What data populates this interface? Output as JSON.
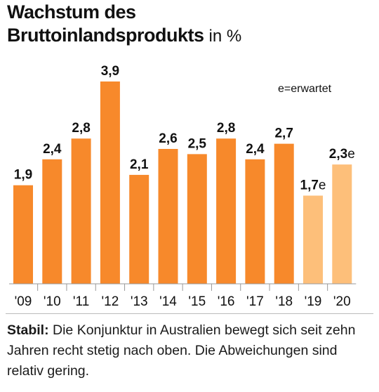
{
  "title": {
    "line1": "Wachstum des",
    "line2": "Bruttoinlandsprodukts",
    "unit": "in %"
  },
  "legend_note": "e=erwartet",
  "caption": {
    "lead": "Stabil:",
    "text": "Die Konjunktur in Australien bewegt sich seit zehn Jahren recht stetig nach oben. Die Abweichungen sind relativ gering."
  },
  "colors": {
    "actual": "#f7892b",
    "expected": "#fdbf7a",
    "axis": "#999999"
  },
  "chart_data": {
    "type": "bar",
    "categories": [
      "'09",
      "'10",
      "'11",
      "'12",
      "'13",
      "'14",
      "'15",
      "'16",
      "'17",
      "'18",
      "'19",
      "'20"
    ],
    "values": [
      1.9,
      2.4,
      2.8,
      3.9,
      2.1,
      2.6,
      2.5,
      2.8,
      2.4,
      2.7,
      1.7,
      2.3
    ],
    "value_labels": [
      "1,9",
      "2,4",
      "2,8",
      "3,9",
      "2,1",
      "2,6",
      "2,5",
      "2,8",
      "2,4",
      "2,7",
      "1,7",
      "2,3"
    ],
    "expected": [
      false,
      false,
      false,
      false,
      false,
      false,
      false,
      false,
      false,
      false,
      true,
      true
    ],
    "expected_suffix": "e",
    "ylim": [
      0,
      3.9
    ],
    "grid": false
  }
}
